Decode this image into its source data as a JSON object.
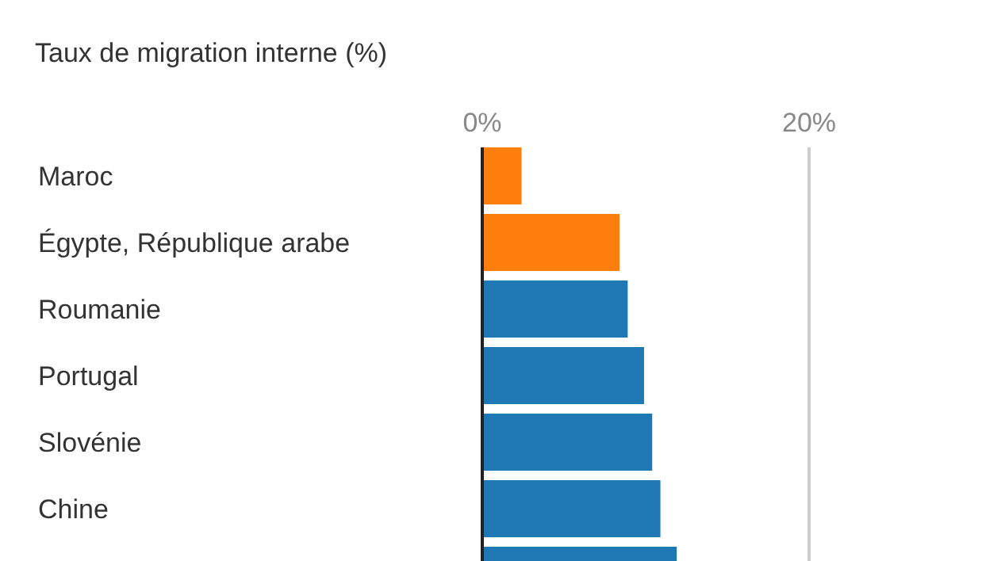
{
  "chart_data": {
    "type": "bar",
    "orientation": "horizontal",
    "title": "Taux de migration interne (%)",
    "categories": [
      "Maroc",
      "Égypte, République arabe",
      "Roumanie",
      "Portugal",
      "Slovénie",
      "Chine",
      null
    ],
    "values": [
      2.4,
      8.4,
      8.9,
      9.9,
      10.4,
      10.9,
      11.9
    ],
    "colors": [
      "#ff7f0e",
      "#ff7f0e",
      "#1f77b4",
      "#1f77b4",
      "#1f77b4",
      "#1f77b4",
      "#1f77b4"
    ],
    "xlim": [
      0,
      20
    ],
    "xticks": [
      {
        "value": 0,
        "label": "0%"
      },
      {
        "value": 20,
        "label": "20%"
      }
    ],
    "grid": "x"
  }
}
